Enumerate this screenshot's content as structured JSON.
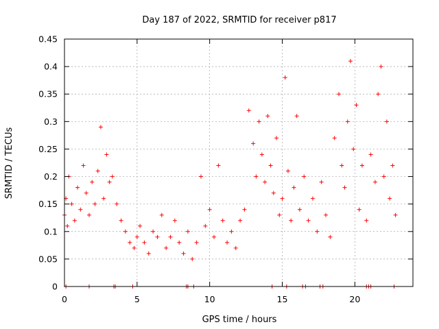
{
  "chart_data": {
    "type": "scatter",
    "title": "Day 187 of 2022, SRMTID for receiver p817",
    "xlabel": "GPS time / hours",
    "ylabel": "SRMTID / TECUs",
    "xlim": [
      0,
      24
    ],
    "ylim": [
      0,
      0.45
    ],
    "xticks": [
      0,
      5,
      10,
      15,
      20
    ],
    "xtick_labels": [
      "0",
      "5",
      "10",
      "15",
      "20"
    ],
    "yticks": [
      0,
      0.05,
      0.1,
      0.15,
      0.2,
      0.25,
      0.3,
      0.35,
      0.4,
      0.45
    ],
    "ytick_labels": [
      "0",
      "0.05",
      "0.1",
      "0.15",
      "0.2",
      "0.25",
      "0.3",
      "0.35",
      "0.4",
      "0.45"
    ],
    "grid": true,
    "marker": "plus",
    "series_color": "#ff0000",
    "series": [
      {
        "name": "SRMTID",
        "x": [
          0.0,
          0.1,
          0.2,
          0.3,
          0.5,
          0.7,
          0.9,
          1.1,
          1.3,
          1.5,
          1.7,
          1.9,
          2.1,
          2.3,
          2.5,
          2.7,
          2.9,
          3.1,
          3.3,
          3.6,
          3.9,
          4.2,
          4.5,
          4.8,
          5.0,
          5.2,
          5.5,
          5.8,
          6.1,
          6.4,
          6.7,
          7.0,
          7.3,
          7.6,
          7.9,
          8.2,
          8.5,
          8.8,
          9.1,
          9.4,
          9.7,
          10.0,
          10.3,
          10.6,
          10.9,
          11.2,
          11.5,
          11.8,
          12.1,
          12.4,
          12.7,
          13.0,
          13.2,
          13.4,
          13.6,
          13.8,
          14.0,
          14.2,
          14.4,
          14.6,
          14.8,
          15.0,
          15.2,
          15.4,
          15.6,
          15.8,
          16.0,
          16.2,
          16.5,
          16.8,
          17.1,
          17.4,
          17.7,
          18.0,
          18.3,
          18.6,
          18.9,
          19.1,
          19.3,
          19.5,
          19.7,
          19.9,
          20.1,
          20.3,
          20.5,
          20.8,
          21.1,
          21.4,
          21.6,
          21.8,
          22.0,
          22.2,
          22.4,
          22.6,
          22.8
        ],
        "y": [
          0.13,
          0.16,
          0.11,
          0.2,
          0.15,
          0.12,
          0.18,
          0.14,
          0.22,
          0.17,
          0.13,
          0.19,
          0.15,
          0.21,
          0.29,
          0.16,
          0.24,
          0.19,
          0.2,
          0.15,
          0.12,
          0.1,
          0.08,
          0.07,
          0.09,
          0.11,
          0.08,
          0.06,
          0.1,
          0.09,
          0.13,
          0.07,
          0.09,
          0.12,
          0.08,
          0.06,
          0.1,
          0.05,
          0.08,
          0.2,
          0.11,
          0.14,
          0.09,
          0.22,
          0.12,
          0.08,
          0.1,
          0.07,
          0.12,
          0.14,
          0.32,
          0.26,
          0.2,
          0.3,
          0.24,
          0.19,
          0.31,
          0.22,
          0.17,
          0.27,
          0.13,
          0.16,
          0.38,
          0.21,
          0.12,
          0.18,
          0.31,
          0.14,
          0.2,
          0.12,
          0.16,
          0.1,
          0.19,
          0.13,
          0.09,
          0.27,
          0.35,
          0.22,
          0.18,
          0.3,
          0.41,
          0.25,
          0.33,
          0.14,
          0.22,
          0.12,
          0.24,
          0.19,
          0.35,
          0.4,
          0.2,
          0.3,
          0.16,
          0.22,
          0.13
        ],
        "y_zero_x": [
          0.1,
          1.7,
          3.4,
          3.5,
          4.7,
          8.4,
          8.5,
          8.9,
          14.3,
          15.3,
          16.4,
          16.6,
          17.6,
          17.8,
          20.8,
          20.95,
          21.1,
          22.7
        ]
      }
    ]
  }
}
